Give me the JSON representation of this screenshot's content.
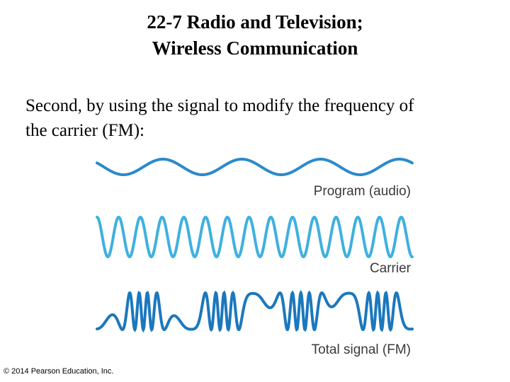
{
  "header": {
    "title_lines": [
      "22-7 Radio and Television;",
      "Wireless Communication"
    ]
  },
  "body": {
    "lines": [
      "Second, by using the signal to modify the frequency of",
      "the carrier (FM):"
    ]
  },
  "figure": {
    "labels": [
      "Program (audio)",
      "Carrier",
      "Total signal (FM)"
    ]
  },
  "footer": {
    "copyright": "© 2014 Pearson Education, Inc."
  }
}
